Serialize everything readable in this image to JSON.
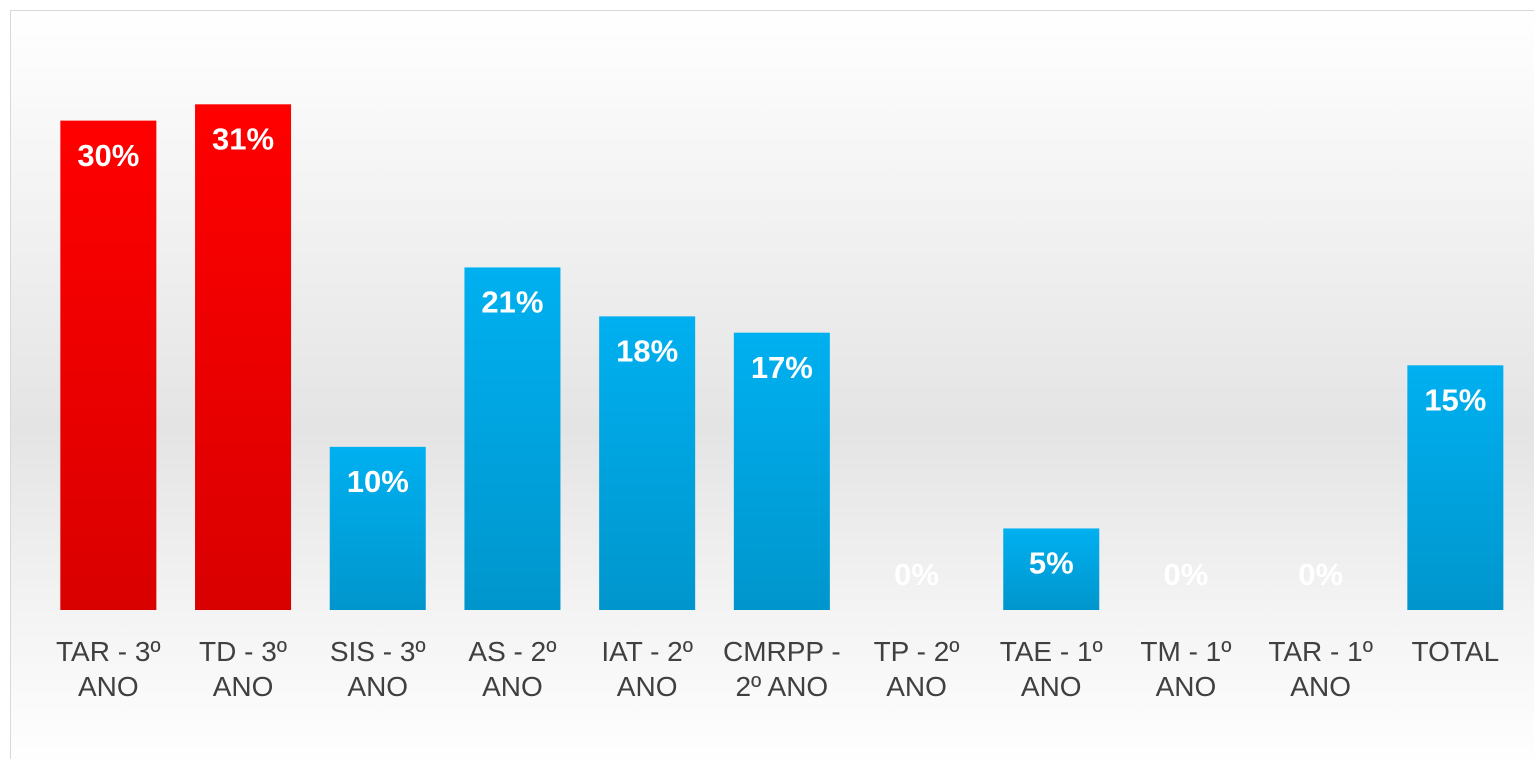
{
  "chart_data": {
    "type": "bar",
    "categories": [
      "TAR - 3º ANO",
      "TD - 3º ANO",
      "SIS - 3º ANO",
      "AS - 2º ANO",
      "IAT - 2º ANO",
      "CMRPP - 2º ANO",
      "TP - 2º ANO",
      "TAE - 1º ANO",
      "TM - 1º ANO",
      "TAR - 1º ANO",
      "TOTAL"
    ],
    "values": [
      30,
      31,
      10,
      21,
      18,
      17,
      0,
      5,
      0,
      0,
      15
    ],
    "value_labels": [
      "30%",
      "31%",
      "10%",
      "21%",
      "18%",
      "17%",
      "0%",
      "5%",
      "0%",
      "0%",
      "15%"
    ],
    "colors": [
      "#ff0000",
      "#ff0000",
      "#00b0f0",
      "#00b0f0",
      "#00b0f0",
      "#00b0f0",
      "#00b0f0",
      "#00b0f0",
      "#00b0f0",
      "#00b0f0",
      "#00b0f0"
    ],
    "ylim": [
      0,
      32
    ]
  }
}
